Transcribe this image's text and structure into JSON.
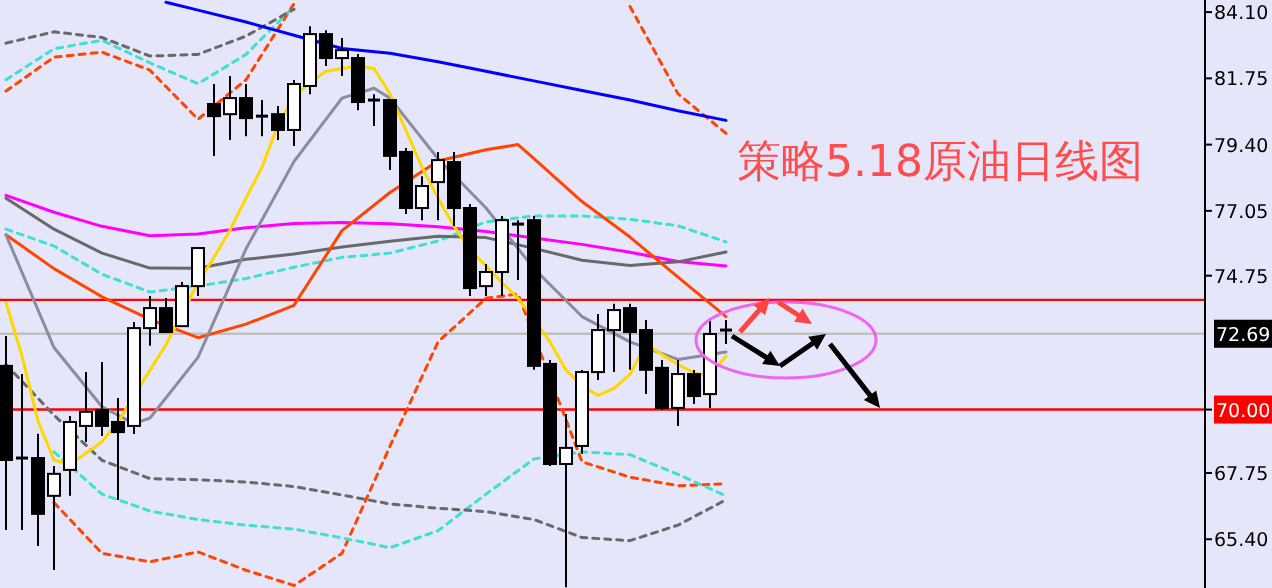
{
  "chart_data": {
    "type": "candlestick",
    "title": "策略5.18原油日线图",
    "categories": [
      null,
      null,
      null,
      null,
      null,
      null,
      null,
      null,
      null,
      null,
      null,
      null,
      null,
      null,
      null,
      null,
      null,
      null,
      null,
      null,
      null,
      null,
      null,
      null,
      null,
      null,
      null,
      null,
      null,
      null,
      null,
      null,
      null,
      null,
      null,
      null,
      null,
      null,
      null,
      null,
      null,
      null,
      null,
      null,
      null,
      null
    ],
    "ohlc": [
      [
        71.55,
        72.61,
        65.73,
        68.21
      ],
      [
        68.28,
        71.26,
        65.73,
        68.28
      ],
      [
        68.28,
        69.14,
        65.16,
        66.3
      ],
      [
        66.94,
        68.0,
        64.31,
        67.72
      ],
      [
        67.86,
        69.77,
        66.94,
        69.56
      ],
      [
        69.42,
        71.33,
        68.85,
        69.92
      ],
      [
        69.99,
        71.69,
        69.06,
        69.42
      ],
      [
        69.56,
        70.41,
        66.79,
        69.2
      ],
      [
        69.42,
        73.11,
        69.13,
        72.89
      ],
      [
        72.89,
        74.03,
        72.26,
        73.6
      ],
      [
        73.6,
        73.96,
        72.75,
        72.75
      ],
      [
        72.96,
        74.53,
        72.96,
        74.38
      ],
      [
        74.38,
        75.73,
        74.03,
        75.73
      ],
      [
        80.84,
        81.55,
        79.0,
        80.41
      ],
      [
        80.48,
        81.83,
        79.56,
        81.05
      ],
      [
        81.05,
        81.55,
        79.7,
        80.34
      ],
      [
        80.41,
        80.98,
        79.7,
        80.41
      ],
      [
        80.48,
        80.77,
        79.56,
        79.92
      ],
      [
        79.92,
        81.69,
        79.35,
        81.55
      ],
      [
        81.48,
        83.6,
        81.19,
        83.32
      ],
      [
        83.32,
        83.46,
        82.19,
        82.47
      ],
      [
        82.47,
        83.18,
        81.83,
        82.75
      ],
      [
        82.47,
        82.61,
        80.62,
        80.91
      ],
      [
        80.98,
        81.19,
        80.06,
        80.98
      ],
      [
        80.98,
        80.98,
        78.5,
        79.0
      ],
      [
        79.14,
        79.28,
        76.94,
        77.15
      ],
      [
        77.15,
        78.28,
        76.72,
        77.93
      ],
      [
        78.07,
        79.14,
        76.72,
        78.85
      ],
      [
        78.78,
        79.14,
        76.51,
        77.15
      ],
      [
        77.15,
        77.29,
        74.03,
        74.31
      ],
      [
        74.38,
        75.16,
        74.03,
        74.88
      ],
      [
        74.88,
        76.87,
        74.03,
        76.72
      ],
      [
        76.58,
        76.72,
        74.6,
        76.58
      ],
      [
        76.72,
        76.87,
        71.41,
        71.55
      ],
      [
        71.62,
        71.76,
        68.0,
        68.07
      ],
      [
        68.07,
        69.84,
        63.7,
        68.64
      ],
      [
        68.71,
        71.4,
        68.43,
        71.33
      ],
      [
        71.33,
        73.39,
        71.05,
        72.82
      ],
      [
        72.82,
        73.75,
        71.33,
        73.53
      ],
      [
        73.6,
        73.75,
        71.41,
        72.75
      ],
      [
        72.82,
        73.18,
        70.55,
        71.41
      ],
      [
        71.48,
        71.76,
        69.99,
        70.06
      ],
      [
        70.06,
        71.76,
        69.42,
        71.26
      ],
      [
        71.26,
        71.4,
        70.2,
        70.48
      ],
      [
        70.55,
        73.25,
        70.06,
        72.68
      ],
      [
        72.82,
        73.18,
        72.33,
        72.82
      ]
    ],
    "series": [
      {
        "type": "line",
        "line_style": "dashed",
        "color": "#ff4500",
        "values": [
          81.3,
          null,
          null,
          82.5,
          null,
          null,
          82.68,
          null,
          null,
          82.04,
          null,
          null,
          80.3,
          null,
          null,
          81.7,
          null,
          null,
          84.4,
          null,
          null,
          null,
          null,
          null,
          null,
          null,
          null,
          null,
          null,
          null,
          null,
          null,
          null,
          null,
          null,
          null,
          null,
          null,
          null,
          null,
          null,
          null,
          null,
          null,
          null,
          null
        ]
      },
      {
        "type": "line",
        "line_style": "dashed",
        "color": "#ff4500",
        "values": [
          null,
          null,
          null,
          null,
          null,
          null,
          null,
          null,
          null,
          null,
          null,
          null,
          null,
          null,
          null,
          null,
          null,
          null,
          null,
          null,
          null,
          null,
          null,
          null,
          null,
          null,
          null,
          null,
          null,
          null,
          null,
          null,
          null,
          null,
          null,
          null,
          null,
          null,
          null,
          84.3,
          null,
          null,
          81.2,
          null,
          null,
          79.8
        ]
      },
      {
        "type": "line",
        "line_style": "dashed",
        "color": "#ff4500",
        "values": [
          null,
          null,
          null,
          66.7,
          null,
          null,
          64.9,
          null,
          null,
          64.6,
          null,
          null,
          64.95,
          null,
          null,
          64.3,
          null,
          null,
          63.76,
          null,
          null,
          64.9,
          null,
          null,
          68.7,
          null,
          null,
          72.4,
          null,
          null,
          73.95,
          null,
          74.1,
          null,
          null,
          null,
          68.15,
          null,
          null,
          67.6,
          null,
          null,
          67.3,
          null,
          null,
          67.37
        ]
      },
      {
        "type": "line",
        "line_style": "dashed",
        "color": "#40e0d0",
        "values": [
          81.7,
          null,
          null,
          82.8,
          null,
          null,
          83.1,
          null,
          null,
          82.3,
          null,
          null,
          81.56,
          null,
          null,
          82.6,
          null,
          null,
          84.3,
          null,
          null,
          null,
          null,
          null,
          null,
          null,
          null,
          null,
          null,
          null,
          null,
          null,
          null,
          null,
          null,
          null,
          null,
          null,
          null,
          null,
          null,
          null,
          null,
          null,
          null,
          null
        ]
      },
      {
        "type": "line",
        "line_style": "dashed",
        "color": "#40e0d0",
        "values": [
          76.4,
          null,
          null,
          75.8,
          null,
          null,
          74.8,
          null,
          null,
          74.17,
          null,
          null,
          74.38,
          null,
          null,
          74.65,
          null,
          null,
          75.05,
          null,
          null,
          75.4,
          null,
          null,
          75.55,
          null,
          null,
          75.98,
          null,
          null,
          76.66,
          null,
          null,
          76.87,
          null,
          null,
          76.87,
          null,
          null,
          76.75,
          null,
          null,
          76.52,
          null,
          null,
          75.95
        ]
      },
      {
        "type": "line",
        "line_style": "dashed",
        "color": "#40e0d0",
        "values": [
          null,
          null,
          null,
          68.5,
          null,
          null,
          67.0,
          null,
          null,
          66.4,
          null,
          null,
          66.1,
          null,
          null,
          65.9,
          null,
          null,
          65.76,
          null,
          null,
          65.45,
          null,
          null,
          65.1,
          null,
          null,
          65.7,
          null,
          null,
          67.0,
          null,
          null,
          68.25,
          null,
          null,
          68.5,
          null,
          null,
          68.4,
          null,
          null,
          67.7,
          null,
          null,
          66.94
        ]
      },
      {
        "type": "line",
        "line_style": "dashed",
        "color": "#696969",
        "values": [
          83.0,
          null,
          null,
          83.4,
          null,
          null,
          83.2,
          null,
          null,
          82.54,
          null,
          null,
          82.6,
          null,
          null,
          83.25,
          null,
          null,
          84.2,
          null,
          null,
          null,
          null,
          null,
          null,
          null,
          null,
          null,
          null,
          null,
          null,
          null,
          null,
          null,
          null,
          null,
          null,
          null,
          null,
          null,
          null,
          null,
          null,
          null,
          null,
          null
        ]
      },
      {
        "type": "line",
        "line_style": "dashed",
        "color": "#696969",
        "values": [
          71.6,
          null,
          null,
          69.8,
          null,
          null,
          68.2,
          null,
          null,
          67.55,
          null,
          null,
          67.51,
          null,
          null,
          67.43,
          null,
          null,
          67.27,
          null,
          null,
          66.97,
          null,
          null,
          66.65,
          null,
          null,
          66.5,
          null,
          null,
          66.38,
          null,
          null,
          66.1,
          null,
          null,
          65.46,
          null,
          null,
          65.35,
          null,
          null,
          65.9,
          null,
          null,
          66.8
        ]
      },
      {
        "type": "line",
        "line_style": "solid",
        "color": "#0000ff",
        "values": [
          null,
          null,
          null,
          null,
          null,
          null,
          null,
          null,
          null,
          null,
          84.45,
          null,
          84.17,
          null,
          null,
          83.75,
          null,
          null,
          83.28,
          null,
          null,
          82.81,
          null,
          null,
          82.64,
          null,
          null,
          82.34,
          null,
          null,
          82.0,
          null,
          null,
          81.66,
          null,
          null,
          81.32,
          null,
          null,
          80.98,
          null,
          null,
          80.6,
          null,
          null,
          80.26
        ]
      },
      {
        "type": "line",
        "line_style": "solid",
        "color": "#ff00ff",
        "values": [
          77.6,
          null,
          null,
          77.0,
          null,
          null,
          76.5,
          null,
          null,
          76.17,
          null,
          null,
          76.23,
          null,
          null,
          76.45,
          null,
          null,
          76.6,
          null,
          null,
          76.64,
          null,
          null,
          76.59,
          null,
          null,
          76.49,
          null,
          null,
          76.32,
          null,
          null,
          76.09,
          null,
          null,
          75.86,
          null,
          null,
          75.58,
          null,
          null,
          75.25,
          null,
          null,
          75.09
        ]
      },
      {
        "type": "line",
        "line_style": "solid",
        "color": "#696969",
        "values": [
          77.5,
          null,
          null,
          76.4,
          null,
          null,
          75.55,
          null,
          null,
          75.02,
          null,
          null,
          75.01,
          null,
          null,
          75.33,
          null,
          null,
          75.52,
          null,
          null,
          75.77,
          null,
          null,
          75.97,
          null,
          null,
          76.15,
          null,
          null,
          76.1,
          null,
          null,
          75.72,
          null,
          null,
          75.3,
          null,
          null,
          75.11,
          null,
          null,
          75.24,
          null,
          null,
          75.59
        ]
      },
      {
        "type": "line",
        "line_style": "solid",
        "color": "#ff4500",
        "values": [
          76.2,
          null,
          null,
          75.0,
          null,
          null,
          74.0,
          null,
          null,
          73.2,
          null,
          null,
          72.55,
          null,
          null,
          73.03,
          null,
          null,
          73.7,
          null,
          null,
          76.35,
          null,
          null,
          77.7,
          null,
          null,
          78.82,
          null,
          null,
          79.22,
          null,
          79.4,
          78.9,
          null,
          null,
          77.38,
          null,
          null,
          76.12,
          null,
          null,
          74.7,
          null,
          null,
          73.3
        ]
      },
      {
        "type": "line",
        "line_style": "solid",
        "color": "#8c8ca0",
        "values": [
          76.2,
          null,
          null,
          72.2,
          null,
          null,
          70.1,
          null,
          69.5,
          69.7,
          null,
          null,
          71.85,
          null,
          null,
          75.7,
          null,
          null,
          78.8,
          null,
          null,
          81.05,
          null,
          81.4,
          81.05,
          null,
          null,
          78.9,
          null,
          null,
          77.15,
          null,
          null,
          75.0,
          null,
          null,
          73.3,
          null,
          null,
          72.4,
          null,
          null,
          71.78,
          null,
          null,
          72.04
        ]
      },
      {
        "type": "line",
        "line_style": "solid",
        "color": "#ffd700",
        "values": [
          73.8,
          71.9,
          69.6,
          68.2,
          68.07,
          68.45,
          68.86,
          69.56,
          null,
          71.4,
          72.3,
          null,
          74.5,
          75.4,
          76.37,
          77.5,
          78.6,
          80.1,
          81.1,
          81.6,
          82.0,
          82.1,
          82.19,
          82.1,
          81.2,
          79.9,
          78.6,
          77.5,
          76.5,
          75.66,
          75.1,
          74.5,
          73.95,
          73.2,
          72.4,
          71.4,
          70.85,
          70.5,
          70.75,
          71.25,
          72.33,
          71.95,
          71.6,
          71.3,
          71.19,
          71.9
        ]
      }
    ],
    "ref_lines": [
      {
        "axis": "y",
        "value": 73.89,
        "color": "#ff0000"
      },
      {
        "axis": "y",
        "value": 72.69,
        "label": "72.69",
        "color": "#c0c0c0"
      },
      {
        "axis": "y",
        "value": 70.0,
        "label": "70.00",
        "color": "#ff0000"
      }
    ],
    "ylim": [
      63.67,
      84.53
    ],
    "yticks": [
      {
        "value": 84.1,
        "label": "84.10"
      },
      {
        "value": 81.75,
        "label": "81.75"
      },
      {
        "value": 79.4,
        "label": "79.40"
      },
      {
        "value": 77.05,
        "label": "77.05"
      },
      {
        "value": 74.75,
        "label": "74.75"
      },
      {
        "value": 70.0,
        "label": null
      },
      {
        "value": 67.75,
        "label": "67.75"
      },
      {
        "value": 65.4,
        "label": "65.40"
      }
    ],
    "tick_labels": "y"
  }
}
